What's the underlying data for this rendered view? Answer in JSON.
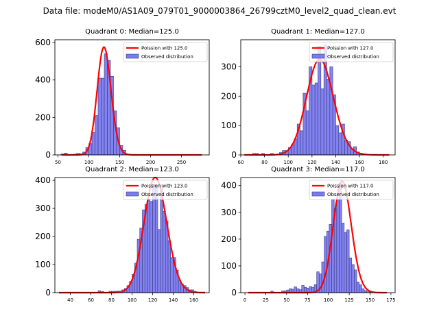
{
  "figure": {
    "suptitle": "Data file: modeM0/AS1A09_079T01_9000003864_26799cztM0_level2_quad_clean.evt",
    "hist_color": "#7b7bf0",
    "hist_edge": "#3a3a7a",
    "line_color": "#ff0000"
  },
  "chart_data": [
    {
      "type": "bar",
      "title": "Quadrant 0: Median=125.0",
      "xlim": [
        45,
        295
      ],
      "ylim": [
        0,
        615
      ],
      "xticks": [
        50,
        100,
        150,
        200,
        250
      ],
      "yticks": [
        0,
        200,
        400,
        600
      ],
      "legend": {
        "placement": "top-right",
        "entries": [
          "Poission with 125.0",
          "Observed distribution"
        ]
      },
      "mean": 125.0,
      "line_range": [
        56,
        283
      ],
      "bin_width": 5,
      "bins": [
        [
          55,
          5
        ],
        [
          60,
          10
        ],
        [
          65,
          3
        ],
        [
          70,
          2
        ],
        [
          75,
          4
        ],
        [
          80,
          8
        ],
        [
          85,
          6
        ],
        [
          90,
          15
        ],
        [
          95,
          40
        ],
        [
          100,
          60
        ],
        [
          105,
          120
        ],
        [
          110,
          210
        ],
        [
          115,
          410
        ],
        [
          120,
          410
        ],
        [
          125,
          540
        ],
        [
          130,
          505
        ],
        [
          135,
          420
        ],
        [
          140,
          235
        ],
        [
          145,
          145
        ],
        [
          150,
          50
        ],
        [
          155,
          25
        ],
        [
          160,
          4
        ]
      ]
    },
    {
      "type": "bar",
      "title": "Quadrant 1: Median=127.0",
      "xlim": [
        60,
        190
      ],
      "ylim": [
        0,
        392
      ],
      "xticks": [
        60,
        80,
        100,
        120,
        140,
        160,
        180
      ],
      "yticks": [
        0,
        100,
        200,
        300
      ],
      "legend": {
        "placement": "top-right",
        "entries": [
          "Poission with 127.0",
          "Observed distribution"
        ]
      },
      "mean": 127.0,
      "line_range": [
        63,
        185
      ],
      "bin_width": 2.5,
      "bins": [
        [
          70,
          5
        ],
        [
          72.5,
          5
        ],
        [
          77.5,
          5
        ],
        [
          85,
          5
        ],
        [
          92.5,
          8
        ],
        [
          95,
          15
        ],
        [
          97.5,
          15
        ],
        [
          100,
          25
        ],
        [
          102.5,
          35
        ],
        [
          105,
          55
        ],
        [
          107.5,
          105
        ],
        [
          110,
          82
        ],
        [
          112.5,
          210
        ],
        [
          115,
          150
        ],
        [
          117.5,
          300
        ],
        [
          120,
          238
        ],
        [
          122.5,
          245
        ],
        [
          125,
          370
        ],
        [
          127.5,
          225
        ],
        [
          130,
          375
        ],
        [
          132.5,
          258
        ],
        [
          135,
          300
        ],
        [
          137.5,
          205
        ],
        [
          140,
          100
        ],
        [
          142.5,
          75
        ],
        [
          145,
          105
        ],
        [
          147.5,
          50
        ],
        [
          150,
          45
        ],
        [
          152.5,
          20
        ],
        [
          155,
          28
        ],
        [
          157.5,
          10
        ],
        [
          160,
          6
        ],
        [
          162.5,
          4
        ]
      ]
    },
    {
      "type": "bar",
      "title": "Quadrant 2: Median=123.0",
      "xlim": [
        25,
        175
      ],
      "ylim": [
        0,
        410
      ],
      "xticks": [
        40,
        60,
        80,
        100,
        120,
        140,
        160
      ],
      "yticks": [
        0,
        100,
        200,
        300,
        400
      ],
      "legend": {
        "placement": "top-right",
        "entries": [
          "Poission with 123.0",
          "Observed distribution"
        ]
      },
      "mean": 123.0,
      "line_range": [
        29,
        171
      ],
      "bin_width": 2.5,
      "bins": [
        [
          67,
          7
        ],
        [
          70,
          4
        ],
        [
          77.5,
          5
        ],
        [
          80,
          5
        ],
        [
          82.5,
          5
        ],
        [
          85,
          6
        ],
        [
          87.5,
          5
        ],
        [
          90,
          10
        ],
        [
          92.5,
          15
        ],
        [
          95,
          25
        ],
        [
          97.5,
          40
        ],
        [
          100,
          65
        ],
        [
          102.5,
          105
        ],
        [
          105,
          190
        ],
        [
          107.5,
          230
        ],
        [
          110,
          295
        ],
        [
          112.5,
          315
        ],
        [
          115,
          330
        ],
        [
          117.5,
          325
        ],
        [
          120,
          385
        ],
        [
          122.5,
          385
        ],
        [
          125,
          225
        ],
        [
          127.5,
          385
        ],
        [
          130,
          290
        ],
        [
          132.5,
          255
        ],
        [
          135,
          185
        ],
        [
          137.5,
          125
        ],
        [
          140,
          125
        ],
        [
          142.5,
          80
        ],
        [
          145,
          45
        ],
        [
          147.5,
          30
        ],
        [
          150,
          25
        ],
        [
          152.5,
          18
        ],
        [
          155,
          10
        ],
        [
          157.5,
          10
        ],
        [
          160,
          5
        ]
      ]
    },
    {
      "type": "bar",
      "title": "Quadrant 3: Median=117.0",
      "xlim": [
        -5,
        180
      ],
      "ylim": [
        0,
        430
      ],
      "xticks": [
        0,
        25,
        50,
        75,
        100,
        125,
        150,
        175
      ],
      "yticks": [
        0,
        100,
        200,
        300,
        400
      ],
      "legend": {
        "placement": "top-right",
        "entries": [
          "Poission with 117.0",
          "Observed distribution"
        ]
      },
      "mean": 117.0,
      "line_range": [
        4,
        170
      ],
      "bin_width": 3,
      "bins": [
        [
          31,
          6
        ],
        [
          44,
          7
        ],
        [
          47,
          7
        ],
        [
          50,
          10
        ],
        [
          53,
          15
        ],
        [
          56,
          13
        ],
        [
          59,
          22
        ],
        [
          62,
          15
        ],
        [
          65,
          11
        ],
        [
          68,
          27
        ],
        [
          71,
          20
        ],
        [
          74,
          17
        ],
        [
          77,
          23
        ],
        [
          80,
          20
        ],
        [
          83,
          30
        ],
        [
          86,
          78
        ],
        [
          89,
          70
        ],
        [
          92,
          115
        ],
        [
          95,
          210
        ],
        [
          98,
          230
        ],
        [
          101,
          255
        ],
        [
          104,
          350
        ],
        [
          107,
          315
        ],
        [
          110,
          350
        ],
        [
          113,
          410
        ],
        [
          116,
          260
        ],
        [
          119,
          225
        ],
        [
          122,
          235
        ],
        [
          125,
          130
        ],
        [
          128,
          105
        ],
        [
          131,
          85
        ],
        [
          134,
          40
        ],
        [
          137,
          30
        ],
        [
          140,
          15
        ],
        [
          143,
          8
        ],
        [
          146,
          5
        ],
        [
          149,
          3
        ]
      ]
    }
  ]
}
